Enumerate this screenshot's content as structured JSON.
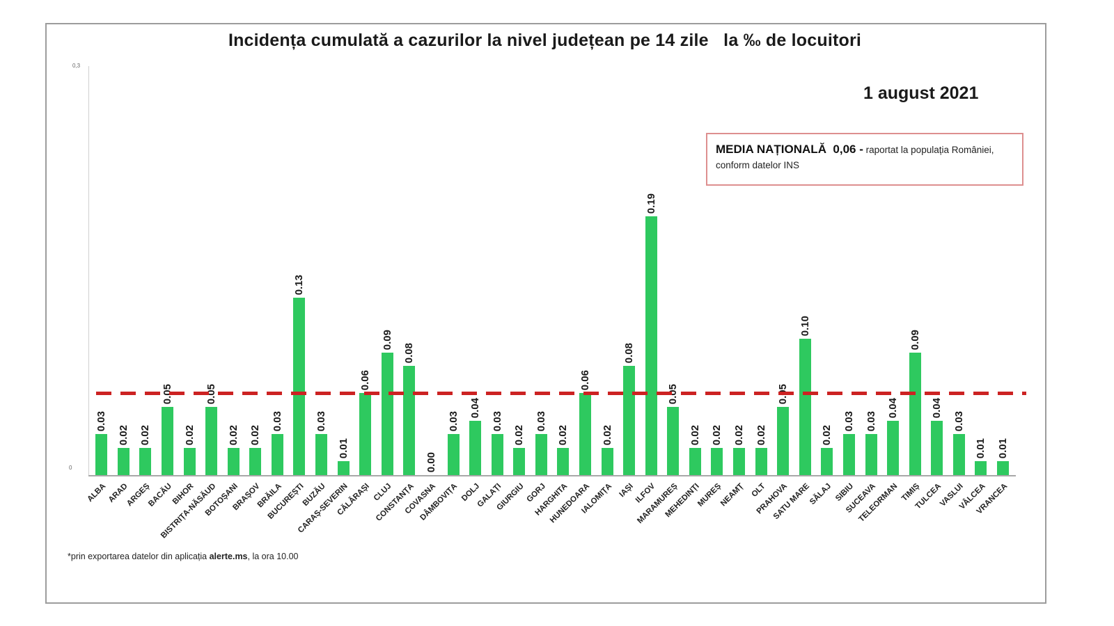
{
  "page": {
    "title": "Incidența cumulată a cazurilor la nivel județean pe 14 zile   la ‰ de locuitori",
    "date": "1 august 2021",
    "media_box": {
      "bold": "MEDIA NAȚIONALĂ  0,06 -",
      "normal": " raportat la populația României, conform datelor INS"
    },
    "footnote": {
      "prefix": "*prin exportarea datelor din aplicația ",
      "bold": "alerte.ms",
      "suffix": ", la ora 10.00"
    },
    "y_axis": {
      "top_label": "0,3",
      "bottom_label": "0"
    }
  },
  "colors": {
    "bar_green": "#2ec95f",
    "reference_line_red": "#cc2222",
    "media_box_border": "#dd8f8f",
    "frame_border": "#9c9c9c"
  },
  "chart_data": {
    "type": "bar",
    "title": "Incidența cumulată a cazurilor la nivel județean pe 14 zile la ‰ de locuitori",
    "xlabel": "",
    "ylabel": "",
    "ylim": [
      0,
      0.3
    ],
    "grid": false,
    "legend": "none",
    "reference_line": {
      "value": 0.06,
      "style": "dashed",
      "color": "#cc2222",
      "label": "MEDIA NAȚIONALĂ 0,06"
    },
    "categories": [
      "ALBA",
      "ARAD",
      "ARGEȘ",
      "BACĂU",
      "BIHOR",
      "BISTRIȚA-NĂSĂUD",
      "BOTOȘANI",
      "BRAȘOV",
      "BRĂILA",
      "BUCUREȘTI",
      "BUZĂU",
      "CARAȘ-SEVERIN",
      "CĂLĂRAȘI",
      "CLUJ",
      "CONSTANȚA",
      "COVASNA",
      "DÂMBOVIȚA",
      "DOLJ",
      "GALAȚI",
      "GIURGIU",
      "GORJ",
      "HARGHITA",
      "HUNEDOARA",
      "IALOMIȚA",
      "IAȘI",
      "ILFOV",
      "MARAMUREȘ",
      "MEHEDINȚI",
      "MUREȘ",
      "NEAMȚ",
      "OLT",
      "PRAHOVA",
      "SATU MARE",
      "SĂLAJ",
      "SIBIU",
      "SUCEAVA",
      "TELEORMAN",
      "TIMIȘ",
      "TULCEA",
      "VASLUI",
      "VÂLCEA",
      "VRANCEA"
    ],
    "values": [
      0.03,
      0.02,
      0.02,
      0.05,
      0.02,
      0.05,
      0.02,
      0.02,
      0.03,
      0.13,
      0.03,
      0.01,
      0.06,
      0.09,
      0.08,
      0.0,
      0.03,
      0.04,
      0.03,
      0.02,
      0.03,
      0.02,
      0.06,
      0.02,
      0.08,
      0.19,
      0.05,
      0.02,
      0.02,
      0.02,
      0.02,
      0.05,
      0.1,
      0.02,
      0.03,
      0.03,
      0.04,
      0.09,
      0.04,
      0.03,
      0.01,
      0.01
    ],
    "value_labels": [
      "0.03",
      "0.02",
      "0.02",
      "0.05",
      "0.02",
      "0.05",
      "0.02",
      "0.02",
      "0.03",
      "0.13",
      "0.03",
      "0.01",
      "0.06",
      "0.09",
      "0.08",
      "0.00",
      "0.03",
      "0.04",
      "0.03",
      "0.02",
      "0.03",
      "0.02",
      "0.06",
      "0.02",
      "0.08",
      "0.19",
      "0.05",
      "0.02",
      "0.02",
      "0.02",
      "0.02",
      "0.05",
      "0.10",
      "0.02",
      "0.03",
      "0.03",
      "0.04",
      "0.09",
      "0.04",
      "0.03",
      "0.01",
      "0.01"
    ]
  }
}
